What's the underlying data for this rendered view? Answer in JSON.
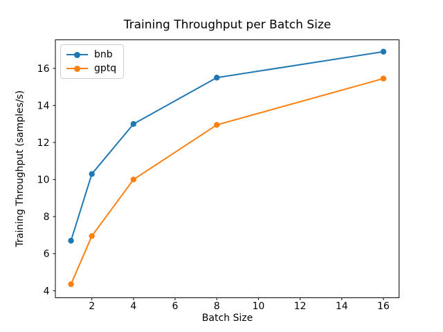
{
  "chart_data": {
    "type": "line",
    "title": "Training Throughput per Batch Size",
    "xlabel": "Batch Size",
    "ylabel": "Training Throughput (samples/s)",
    "x": [
      1,
      2,
      4,
      8,
      16
    ],
    "series": [
      {
        "name": "bnb",
        "color": "#1f77b4",
        "values": [
          6.7,
          10.3,
          13.0,
          15.5,
          16.9
        ]
      },
      {
        "name": "gptq",
        "color": "#ff7f0e",
        "values": [
          4.35,
          6.95,
          10.0,
          12.95,
          15.45
        ]
      }
    ],
    "xlim": [
      0.25,
      16.75
    ],
    "ylim": [
      3.62,
      17.54
    ],
    "xticks": [
      2,
      4,
      6,
      8,
      10,
      12,
      14,
      16
    ],
    "yticks": [
      4,
      6,
      8,
      10,
      12,
      14,
      16
    ],
    "grid": false,
    "legend_position": "upper left",
    "marker": "o",
    "line_color_names": {
      "bnb": "blue",
      "gptq": "orange"
    },
    "background": "#ffffff",
    "spine_color": "#000000"
  }
}
